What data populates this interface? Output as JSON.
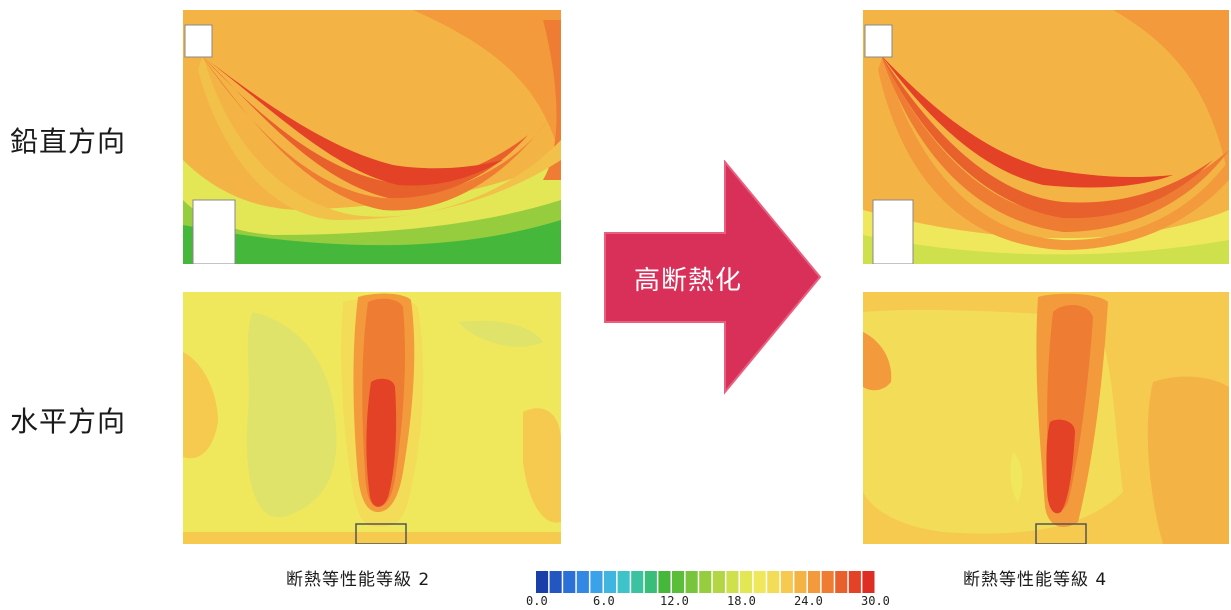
{
  "rows": {
    "vertical": "鉛直方向",
    "horizontal": "水平方向"
  },
  "arrow": {
    "label": "高断熱化",
    "color": "#d9305a"
  },
  "captions": {
    "left": "断熱等性能等級 2",
    "right": "断熱等性能等級 4"
  },
  "scale": {
    "ticks": [
      "0.0",
      "6.0",
      "12.0",
      "18.0",
      "24.0",
      "30.0"
    ],
    "colors": [
      "#1b3fa8",
      "#2356c0",
      "#2a70d6",
      "#3388e4",
      "#3ba1e8",
      "#3fb5e0",
      "#3ec3c9",
      "#3cc2a0",
      "#3bbd7a",
      "#45b83c",
      "#5cbd3a",
      "#78c43c",
      "#95cd3f",
      "#b3d645",
      "#cee04c",
      "#e4e755",
      "#f0e85c",
      "#f3dc58",
      "#f5ca4f",
      "#f4b445",
      "#f29a3c",
      "#ee7d33",
      "#e8602c",
      "#e34227",
      "#de2d23"
    ]
  },
  "panels": {
    "vertical_left": "vertical-grade2",
    "vertical_right": "vertical-grade4",
    "horizontal_left": "horizontal-grade2",
    "horizontal_right": "horizontal-grade4"
  }
}
